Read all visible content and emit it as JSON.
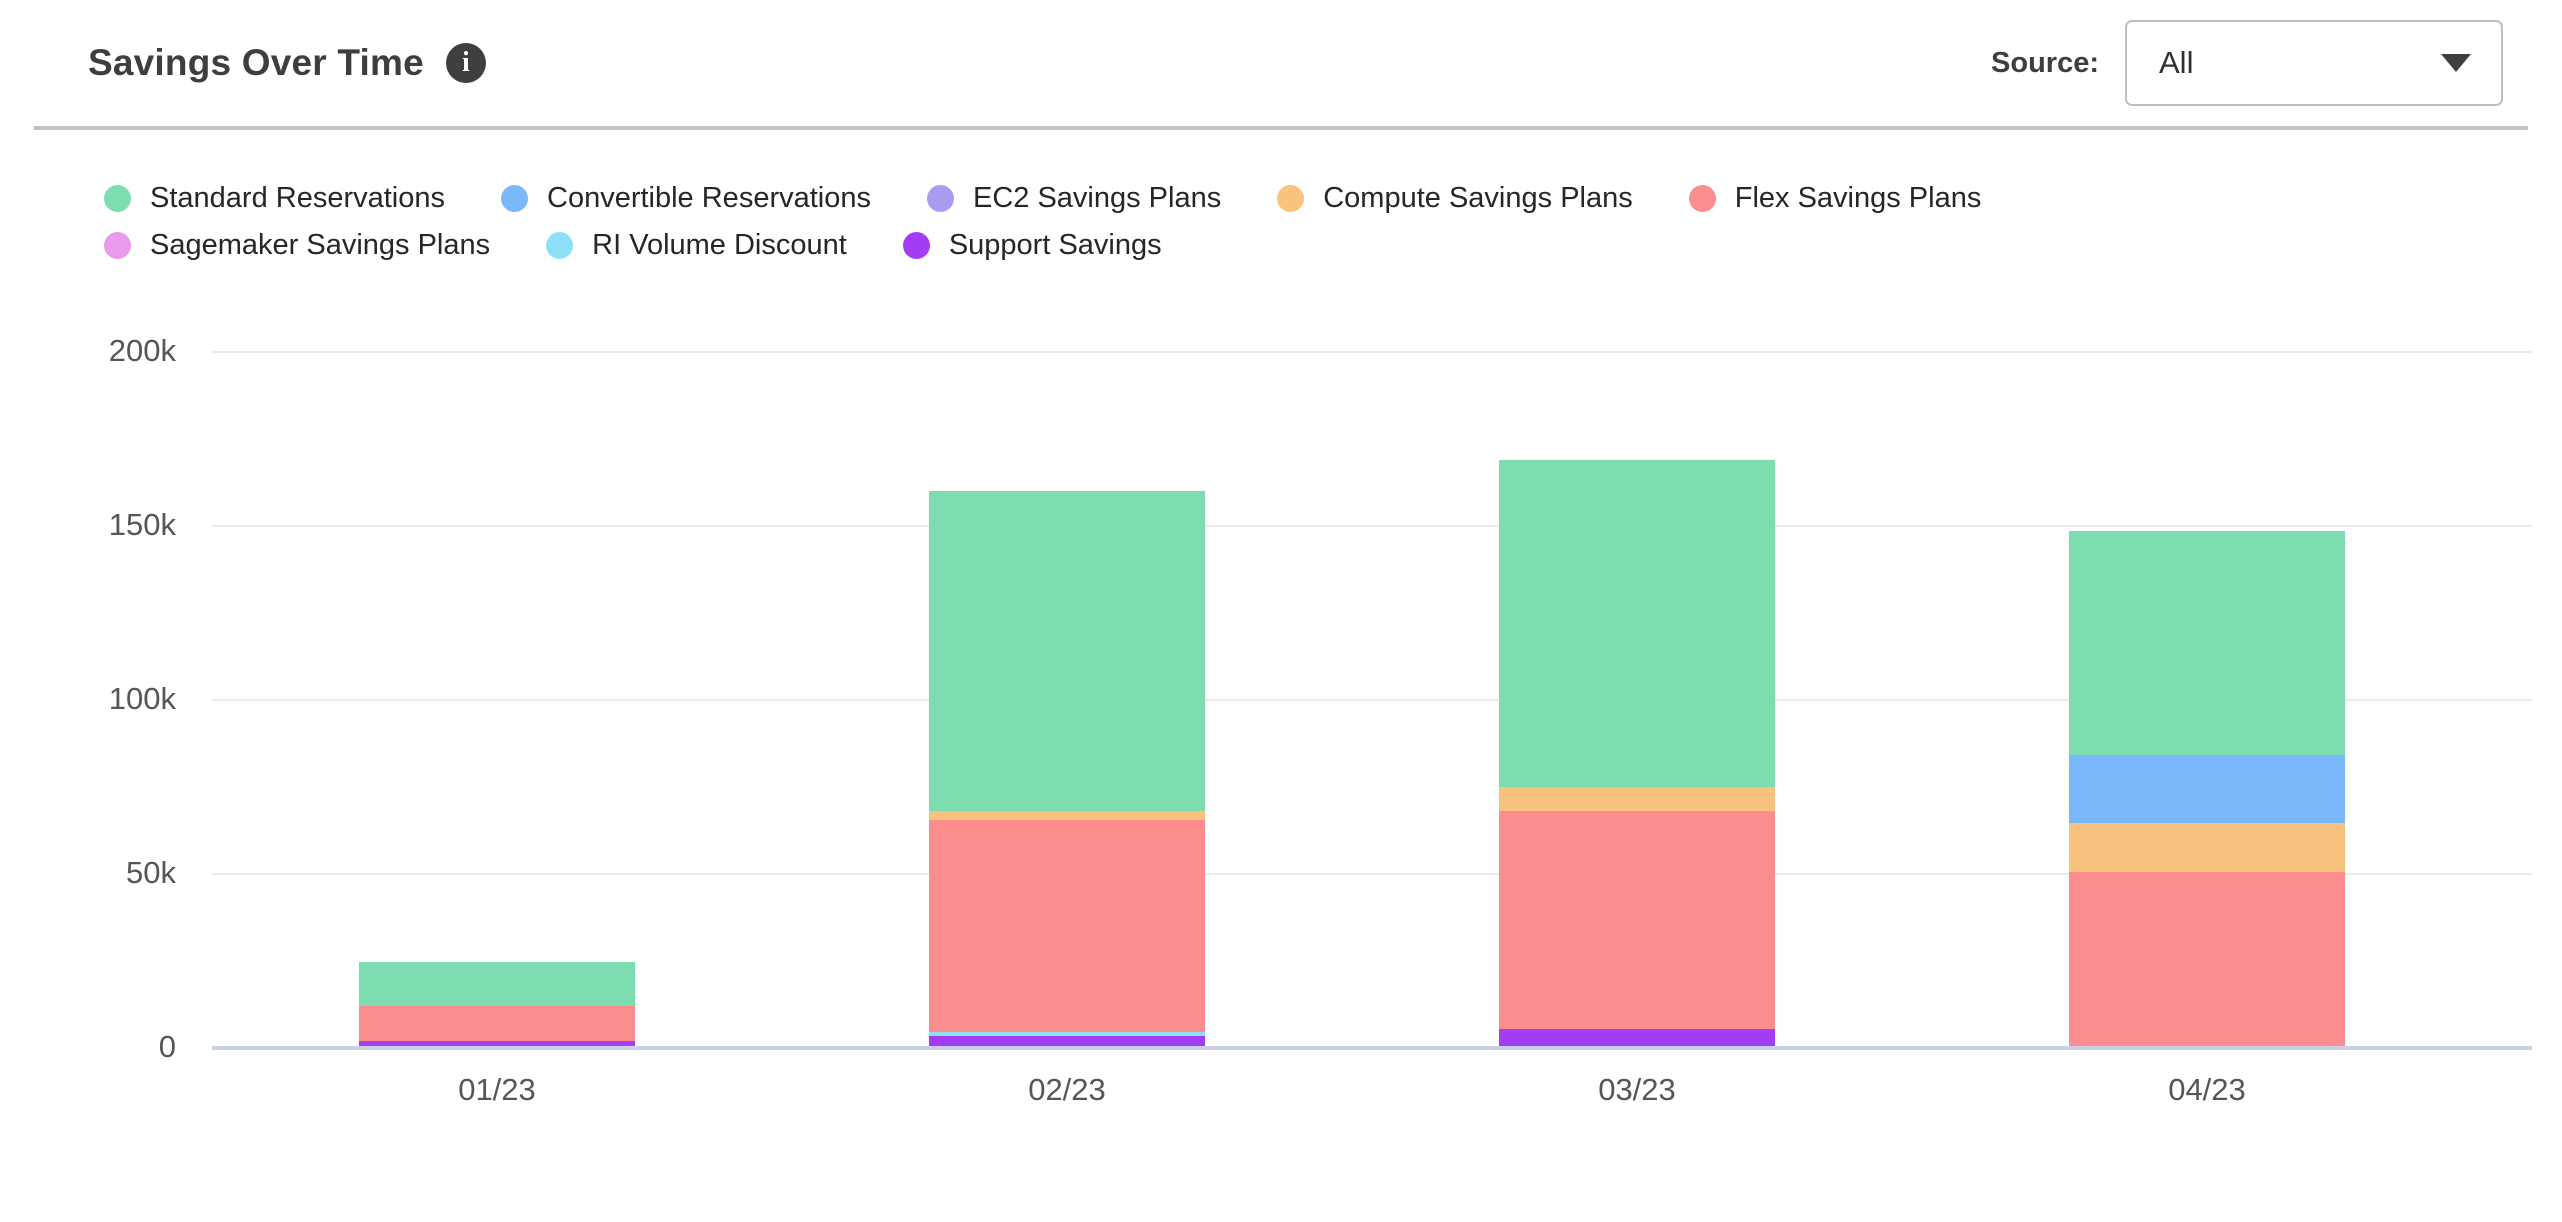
{
  "header": {
    "title": "Savings Over Time",
    "info_icon": "i",
    "source_label": "Source:",
    "source_value": "All"
  },
  "chart_data": {
    "type": "bar",
    "stacked": true,
    "title": "Savings Over Time",
    "categories": [
      "01/23",
      "02/23",
      "03/23",
      "04/23"
    ],
    "value_unit": "thousands",
    "series": [
      {
        "name": "Standard Reservations",
        "color": "#7EDCB1",
        "values": [
          12.5,
          92,
          94,
          64.5
        ]
      },
      {
        "name": "Convertible Reservations",
        "color": "#7AB8FA",
        "values": [
          0,
          0,
          0,
          19.5
        ]
      },
      {
        "name": "EC2 Savings Plans",
        "color": "#A89BF0",
        "values": [
          0,
          0,
          0,
          0
        ]
      },
      {
        "name": "Compute Savings Plans",
        "color": "#F8C37E",
        "values": [
          0,
          2.5,
          7,
          14
        ]
      },
      {
        "name": "Flex Savings Plans",
        "color": "#FC8D8D",
        "values": [
          10,
          61,
          62.5,
          50
        ]
      },
      {
        "name": "Sagemaker Savings Plans",
        "color": "#E79BEA",
        "values": [
          0,
          0,
          0,
          0
        ]
      },
      {
        "name": "RI Volume Discount",
        "color": "#8EE0F8",
        "values": [
          0,
          1,
          0,
          0
        ]
      },
      {
        "name": "Support Savings",
        "color": "#A33CF5",
        "values": [
          1.5,
          3,
          5,
          0
        ]
      }
    ],
    "totals": [
      24,
      159.5,
      168.5,
      148
    ],
    "stack_order_bottom_to_top": [
      "Support Savings",
      "RI Volume Discount",
      "Sagemaker Savings Plans",
      "Flex Savings Plans",
      "Compute Savings Plans",
      "EC2 Savings Plans",
      "Convertible Reservations",
      "Standard Reservations"
    ],
    "ylim": [
      0,
      200
    ],
    "yticks": [
      {
        "value": 0,
        "label": "0"
      },
      {
        "value": 50,
        "label": "50k"
      },
      {
        "value": 100,
        "label": "100k"
      },
      {
        "value": 150,
        "label": "150k"
      },
      {
        "value": 200,
        "label": "200k"
      }
    ],
    "xlabel": "",
    "ylabel": "",
    "grid": true,
    "legend_position": "top",
    "legend_rows": [
      5,
      3
    ],
    "gridline_color": "#EBEBEB",
    "baseline_color": "#C9D0EA",
    "axis_text_color": "#565656"
  }
}
